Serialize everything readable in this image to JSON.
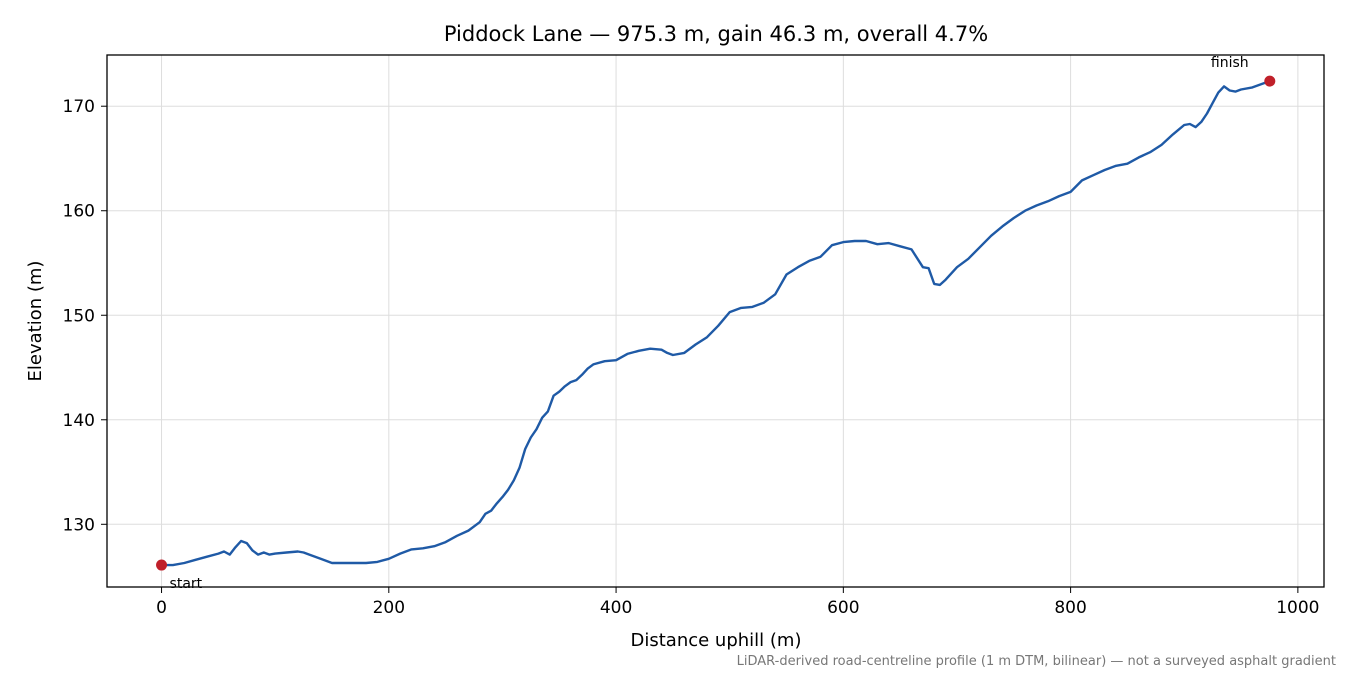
{
  "chart_data": {
    "type": "line",
    "title": "Piddock Lane — 975.3 m, gain 46.3 m, overall 4.7%",
    "xlabel": "Distance uphill (m)",
    "ylabel": "Elevation (m)",
    "xlim": [
      -48,
      1023
    ],
    "ylim": [
      124,
      174.9
    ],
    "xticks": [
      0,
      200,
      400,
      600,
      800,
      1000
    ],
    "yticks": [
      130,
      140,
      150,
      160,
      170
    ],
    "grid": true,
    "footnote": "LiDAR-derived road-centreline profile (1 m DTM, bilinear) — not a surveyed asphalt gradient",
    "line_color": "#1f5aa6",
    "marker_color": "#c0202a",
    "series": [
      {
        "x": [
          0,
          10,
          20,
          30,
          40,
          50,
          55,
          60,
          65,
          70,
          75,
          80,
          85,
          90,
          95,
          100,
          110,
          120,
          125,
          130,
          140,
          150,
          160,
          170,
          180,
          190,
          200,
          210,
          220,
          230,
          240,
          250,
          260,
          270,
          280,
          285,
          290,
          295,
          300,
          305,
          310,
          315,
          320,
          325,
          330,
          335,
          340,
          345,
          350,
          355,
          360,
          365,
          370,
          375,
          380,
          390,
          400,
          410,
          420,
          430,
          440,
          445,
          450,
          460,
          470,
          480,
          490,
          500,
          510,
          520,
          530,
          540,
          550,
          560,
          570,
          580,
          590,
          600,
          610,
          620,
          630,
          640,
          650,
          660,
          670,
          675,
          680,
          685,
          690,
          700,
          710,
          720,
          730,
          740,
          750,
          760,
          770,
          780,
          790,
          800,
          810,
          820,
          830,
          840,
          850,
          860,
          870,
          880,
          890,
          900,
          905,
          910,
          915,
          920,
          925,
          930,
          935,
          940,
          945,
          950,
          960,
          970,
          975.3
        ],
        "y": [
          126.1,
          126.1,
          126.3,
          126.6,
          126.9,
          127.2,
          127.4,
          127.1,
          127.8,
          128.4,
          128.2,
          127.5,
          127.1,
          127.3,
          127.1,
          127.2,
          127.3,
          127.4,
          127.3,
          127.1,
          126.7,
          126.3,
          126.3,
          126.3,
          126.3,
          126.4,
          126.7,
          127.2,
          127.6,
          127.7,
          127.9,
          128.3,
          128.9,
          129.4,
          130.2,
          131.0,
          131.3,
          132.0,
          132.6,
          133.3,
          134.2,
          135.4,
          137.2,
          138.3,
          139.1,
          140.2,
          140.8,
          142.3,
          142.7,
          143.2,
          143.6,
          143.8,
          144.3,
          144.9,
          145.3,
          145.6,
          145.7,
          146.3,
          146.6,
          146.8,
          146.7,
          146.4,
          146.2,
          146.4,
          147.2,
          147.9,
          149.0,
          150.3,
          150.7,
          150.8,
          151.2,
          152.0,
          153.9,
          154.6,
          155.2,
          155.6,
          156.7,
          157.0,
          157.1,
          157.1,
          156.8,
          156.9,
          156.6,
          156.3,
          154.6,
          154.5,
          153.0,
          152.9,
          153.4,
          154.6,
          155.4,
          156.5,
          157.6,
          158.5,
          159.3,
          160.0,
          160.5,
          160.9,
          161.4,
          161.8,
          162.9,
          163.4,
          163.9,
          164.3,
          164.5,
          165.1,
          165.6,
          166.3,
          167.3,
          168.2,
          168.3,
          168.0,
          168.5,
          169.3,
          170.3,
          171.3,
          171.9,
          171.5,
          171.4,
          171.6,
          171.8,
          172.2,
          172.4
        ]
      }
    ],
    "start_marker": {
      "x": 0,
      "y": 126.1,
      "label": "start"
    },
    "finish_marker": {
      "x": 975.3,
      "y": 172.4,
      "label": "finish"
    }
  }
}
